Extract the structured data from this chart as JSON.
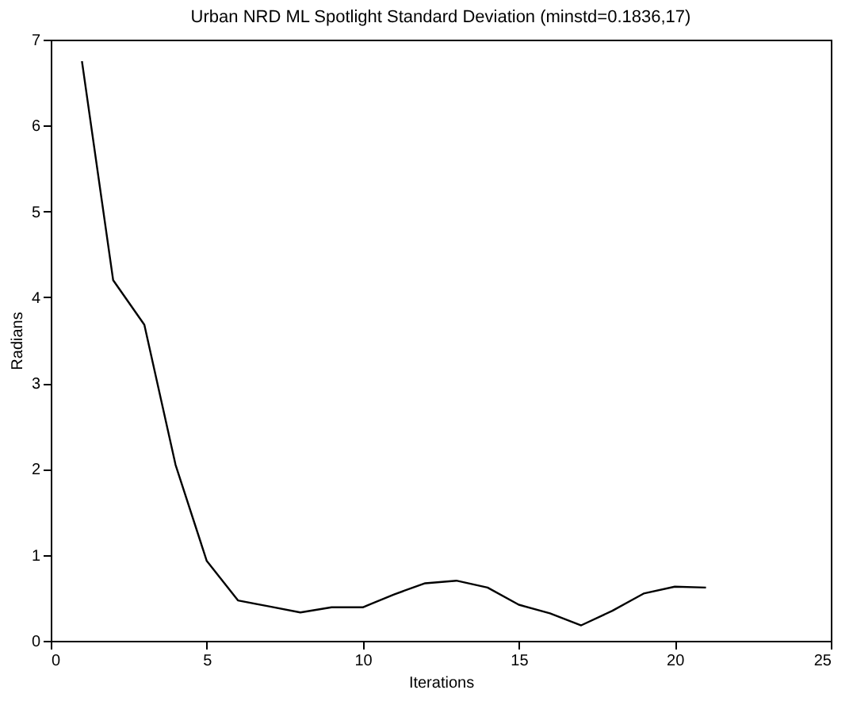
{
  "chart_data": {
    "type": "line",
    "title": "Urban NRD ML Spotlight Standard Deviation (minstd=0.1836,17)",
    "xlabel": "Iterations",
    "ylabel": "Radians",
    "x": [
      1,
      2,
      3,
      4,
      5,
      6,
      7,
      8,
      9,
      10,
      11,
      12,
      13,
      14,
      15,
      16,
      17,
      18,
      19,
      20,
      21
    ],
    "series": [
      {
        "color": "#000000",
        "values": [
          6.75,
          4.2,
          3.68,
          2.05,
          0.93,
          0.47,
          0.4,
          0.33,
          0.39,
          0.39,
          0.54,
          0.67,
          0.7,
          0.62,
          0.42,
          0.32,
          0.18,
          0.35,
          0.55,
          0.63,
          0.62
        ]
      }
    ],
    "xlim": [
      0,
      25
    ],
    "xticks": [
      0,
      5,
      10,
      15,
      20,
      25
    ],
    "ylim": [
      0,
      7
    ],
    "yticks": [
      0,
      1,
      2,
      3,
      4,
      5,
      6,
      7
    ],
    "grid": false,
    "marker": "none",
    "line_style": "solid"
  }
}
